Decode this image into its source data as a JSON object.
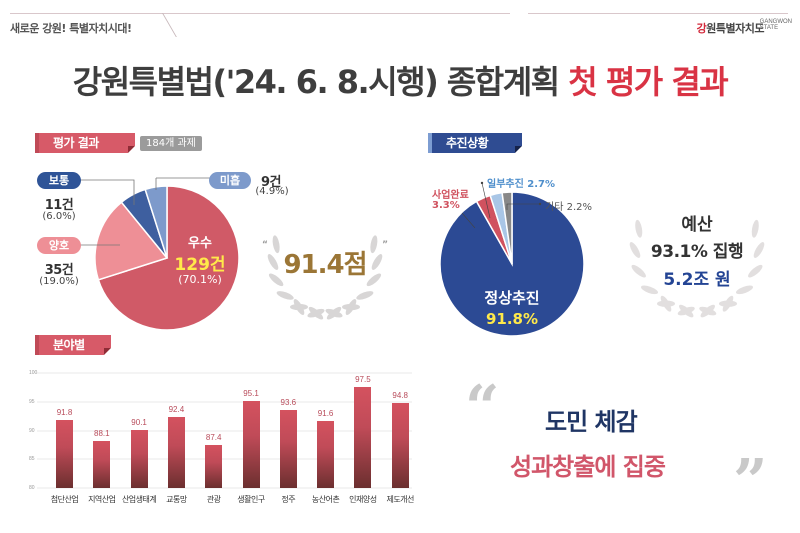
{
  "header": {
    "slogan": "새로운 강원! 특별자치시대!",
    "brand_prefix": "강",
    "brand_rest": "원특별자치도",
    "brand_en_1": "GANGWON",
    "brand_en_2": "STATE"
  },
  "title": {
    "main": "강원특별법('24. 6. 8.시행) 종합계획 ",
    "highlight": "첫 평가 결과"
  },
  "evaluation": {
    "tag": "평가 결과",
    "badge": "184개 과제",
    "score": "91.4점",
    "segments": [
      {
        "label": "우수",
        "count": "129건",
        "pct": "(70.1%)",
        "value": 70.1,
        "color": "#d05a67"
      },
      {
        "label": "양호",
        "count": "35건",
        "pct": "(19.0%)",
        "value": 19.0,
        "color": "#ee8f96"
      },
      {
        "label": "보통",
        "count": "11건",
        "pct": "(6.0%)",
        "value": 6.0,
        "color": "#3e5f9f"
      },
      {
        "label": "미흡",
        "count": "9건",
        "pct": "(4.9%)",
        "value": 4.9,
        "color": "#7d9acb"
      }
    ]
  },
  "progress": {
    "tag": "추진상황",
    "segments": [
      {
        "label": "정상추진",
        "pct": "91.8%",
        "value": 91.8,
        "color": "#2c4a94"
      },
      {
        "label": "사업완료",
        "pct": "3.3%",
        "value": 3.3,
        "color": "#d0525f"
      },
      {
        "label": "일부추진",
        "pct": "2.7%",
        "value": 2.7,
        "color": "#a9c6e6"
      },
      {
        "label": "기타",
        "pct": "2.2%",
        "value": 2.2,
        "color": "#888888"
      }
    ],
    "label_complete": "사업완료",
    "label_complete_pct": "3.3%",
    "label_partial": "일부추진 2.7%",
    "label_other": "기타 2.2%",
    "label_normal": "정상추진",
    "label_normal_pct": "91.8%"
  },
  "budget": {
    "line1": "예산",
    "line2": "93.1% 집행",
    "line3": "5.2조 원"
  },
  "field": {
    "tag": "분야별"
  },
  "message": {
    "open_quote": "“",
    "close_quote": "”",
    "line1": "도민 체감",
    "line2": "성과창출에 집중"
  },
  "chart_data": [
    {
      "type": "pie",
      "title": "평가 결과 (184개 과제)",
      "categories": [
        "우수",
        "양호",
        "보통",
        "미흡"
      ],
      "values": [
        70.1,
        19.0,
        6.0,
        4.9
      ],
      "counts": [
        129,
        35,
        11,
        9
      ],
      "annotation": "91.4점"
    },
    {
      "type": "pie",
      "title": "추진상황",
      "categories": [
        "정상추진",
        "사업완료",
        "일부추진",
        "기타"
      ],
      "values": [
        91.8,
        3.3,
        2.7,
        2.2
      ]
    },
    {
      "type": "bar",
      "title": "분야별",
      "categories": [
        "첨단산업",
        "지역산업",
        "산업생태계",
        "교통망",
        "관광",
        "생활인구",
        "정주",
        "농산어촌",
        "인재양성",
        "제도개선"
      ],
      "values": [
        91.8,
        88.1,
        90.1,
        92.4,
        87.4,
        95.1,
        93.6,
        91.6,
        97.5,
        94.8
      ],
      "xlabel": "",
      "ylabel": "",
      "ylim": [
        80,
        100
      ],
      "yticks": [
        "80",
        "85",
        "90",
        "95",
        "100"
      ],
      "grid": true
    }
  ]
}
